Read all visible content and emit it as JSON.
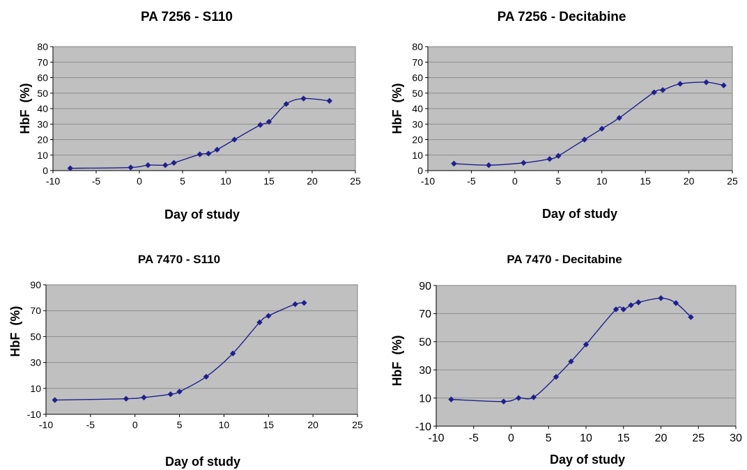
{
  "chart_data": [
    {
      "type": "line",
      "title": "PA 7256 - S110",
      "xlabel": "Day of study",
      "ylabel": "HbF  (%)",
      "xlim": [
        -10,
        25
      ],
      "ylim": [
        0,
        80
      ],
      "xticks": [
        -10,
        -5,
        0,
        5,
        10,
        15,
        20,
        25
      ],
      "yticks": [
        0,
        10,
        20,
        30,
        40,
        50,
        60,
        70,
        80
      ],
      "grid": true,
      "series": [
        {
          "x": [
            -8,
            -1,
            1,
            3,
            4,
            7,
            8,
            9,
            11,
            14,
            15,
            17,
            19,
            22
          ],
          "y": [
            1.5,
            2,
            3.5,
            3.5,
            5,
            10.5,
            11,
            13.5,
            20,
            29.5,
            31.5,
            43,
            46.5,
            45
          ],
          "color": "#1f1f8f"
        }
      ]
    },
    {
      "type": "line",
      "title": "PA 7256 - Decitabine",
      "xlabel": "Day of study",
      "ylabel": "HbF  (%)",
      "xlim": [
        -10,
        25
      ],
      "ylim": [
        0,
        80
      ],
      "xticks": [
        -10,
        -5,
        0,
        5,
        10,
        15,
        20,
        25
      ],
      "yticks": [
        0,
        10,
        20,
        30,
        40,
        50,
        60,
        70,
        80
      ],
      "grid": true,
      "series": [
        {
          "x": [
            -7,
            -3,
            1,
            4,
            5,
            8,
            10,
            12,
            16,
            17,
            19,
            22,
            24
          ],
          "y": [
            4.5,
            3.5,
            5,
            7.5,
            9.5,
            20,
            27,
            34,
            50.5,
            52,
            56,
            57,
            55
          ],
          "color": "#1f1f8f"
        }
      ]
    },
    {
      "type": "line",
      "title": "PA 7470 - S110",
      "xlabel": "Day of study",
      "ylabel": "HbF  (%)",
      "xlim": [
        -10,
        25
      ],
      "ylim": [
        -10,
        90
      ],
      "xticks": [
        -10,
        -5,
        0,
        5,
        10,
        15,
        20,
        25
      ],
      "yticks": [
        -10,
        10,
        30,
        50,
        70,
        90
      ],
      "grid": true,
      "series": [
        {
          "x": [
            -9,
            -1,
            1,
            4,
            5,
            8,
            11,
            14,
            15,
            18,
            19
          ],
          "y": [
            1,
            2,
            3,
            5.5,
            7.5,
            19,
            37,
            61,
            66,
            75,
            76
          ],
          "color": "#1f1f8f"
        }
      ]
    },
    {
      "type": "line",
      "title": "PA 7470 - Decitabine",
      "xlabel": "Day of study",
      "ylabel": "HbF  (%)",
      "xlim": [
        -10,
        30
      ],
      "ylim": [
        -10,
        90
      ],
      "xticks": [
        -10,
        -5,
        0,
        5,
        10,
        15,
        20,
        25,
        30
      ],
      "yticks": [
        -10,
        10,
        30,
        50,
        70,
        90
      ],
      "grid": true,
      "series": [
        {
          "x": [
            -8,
            -1,
            1,
            3,
            6,
            8,
            10,
            14,
            15,
            16,
            17,
            20,
            22,
            24
          ],
          "y": [
            9,
            7.5,
            10,
            10.5,
            25,
            36,
            48,
            73,
            73,
            76,
            78,
            81,
            77.5,
            67.5
          ],
          "color": "#1f1f8f"
        }
      ]
    }
  ]
}
